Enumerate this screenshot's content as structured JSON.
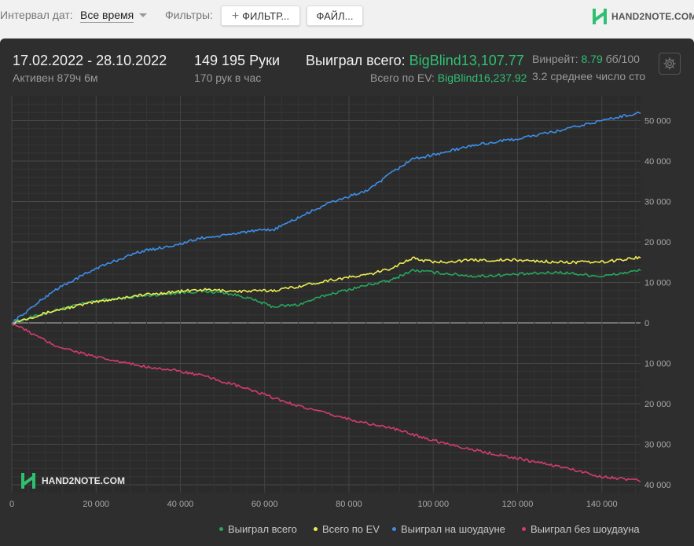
{
  "toolbar": {
    "date_interval_label": "Интервал дат:",
    "date_interval_value": "Все время",
    "filters_label": "Фильтры:",
    "filter_button": "ФИЛЬТР...",
    "file_button": "ФАЙЛ...",
    "plus_symbol": "+",
    "logo_text": "HAND2NOTE.COM"
  },
  "header": {
    "date_range": "17.02.2022 - 28.10.2022",
    "active_time": "Активен 879ч 6м",
    "hands": "149 195 Руки",
    "hands_per_hour": "170 рук в час",
    "won_total_label": "Выиграл всего:",
    "won_total_value": "BigBlind13,107.77",
    "ev_label": "Всего по EV:",
    "ev_value": "BigBlind16,237.92",
    "winrate_label": "Винрейт:",
    "winrate_value": "8.79",
    "winrate_unit": "бб/100",
    "avg_tables": "3.2 среднее число сто"
  },
  "watermark": "HAND2NOTE.COM",
  "colors": {
    "won_total": "#27a55d",
    "ev": "#ecec50",
    "showdown": "#3d8ee8",
    "non_showdown": "#d23c6e",
    "accent_green": "#2fbf71"
  },
  "chart_data": {
    "type": "line",
    "xlim": [
      0,
      149195
    ],
    "ylim": [
      -40000,
      55000
    ],
    "x_ticks": [
      0,
      20000,
      40000,
      60000,
      80000,
      100000,
      120000,
      140000
    ],
    "x_tick_labels": [
      "0",
      "20 000",
      "40 000",
      "60 000",
      "80 000",
      "100 000",
      "120 000",
      "140 000"
    ],
    "y_ticks": [
      50000,
      40000,
      30000,
      20000,
      10000,
      0,
      -10000,
      -20000,
      -30000,
      -40000
    ],
    "y_tick_labels": [
      "50 000",
      "40 000",
      "30 000",
      "20 000",
      "10 000",
      "0",
      "10 000",
      "20 000",
      "30 000",
      "40 000"
    ],
    "grid": true,
    "legend_position": "bottom-right",
    "x": [
      0,
      10000,
      20000,
      30000,
      40000,
      45000,
      50000,
      55000,
      62000,
      68000,
      75000,
      85000,
      90000,
      95000,
      100000,
      110000,
      120000,
      130000,
      140000,
      149195
    ],
    "series": [
      {
        "name": "Выиграл всего",
        "color": "#27a55d",
        "values": [
          0,
          3000,
          5500,
          6500,
          7500,
          7800,
          7500,
          6500,
          4000,
          4500,
          7000,
          9500,
          10500,
          13000,
          12500,
          11500,
          12000,
          12500,
          11500,
          13000
        ]
      },
      {
        "name": "Всего по EV",
        "color": "#ecec50",
        "values": [
          0,
          3000,
          5200,
          6800,
          7800,
          8200,
          8000,
          7800,
          8000,
          9000,
          10500,
          12000,
          13500,
          16000,
          15000,
          15500,
          15500,
          15000,
          15000,
          16200
        ]
      },
      {
        "name": "Выиграл на шоудауне",
        "color": "#3d8ee8",
        "values": [
          0,
          8000,
          13500,
          17500,
          19500,
          21000,
          21500,
          22500,
          23000,
          26000,
          29500,
          33000,
          37000,
          40500,
          41500,
          44000,
          45500,
          47500,
          50000,
          52000
        ]
      },
      {
        "name": "Выиграл без шоудауна",
        "color": "#d23c6e",
        "values": [
          0,
          -5500,
          -8500,
          -10500,
          -12000,
          -13000,
          -14500,
          -16000,
          -18500,
          -20500,
          -22500,
          -25000,
          -26000,
          -27500,
          -29000,
          -31500,
          -33500,
          -35500,
          -38000,
          -39000
        ]
      }
    ]
  }
}
